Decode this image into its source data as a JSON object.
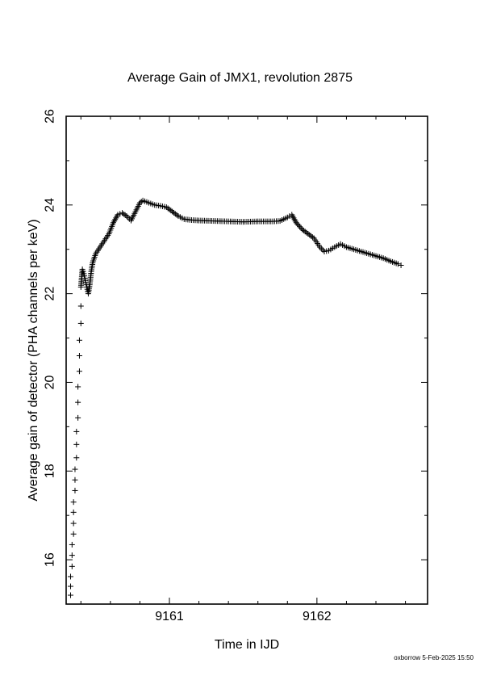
{
  "chart_data": {
    "type": "scatter",
    "title": "Average Gain of JMX1, revolution 2875",
    "xlabel": "Time in IJD",
    "ylabel": "Average gain of detector (PHA channels per keV)",
    "xlim": [
      9160.3,
      9162.75
    ],
    "ylim": [
      15,
      26
    ],
    "xticks": [
      9161,
      9162
    ],
    "yticks": [
      16,
      18,
      20,
      22,
      24,
      26
    ],
    "grid": false,
    "marker": "+",
    "series": [
      {
        "points": [
          [
            9160.33,
            15.2
          ],
          [
            9160.33,
            15.4
          ],
          [
            9160.33,
            15.62
          ],
          [
            9160.34,
            15.85
          ],
          [
            9160.34,
            16.1
          ],
          [
            9160.34,
            16.34
          ],
          [
            9160.35,
            16.58
          ],
          [
            9160.35,
            16.82
          ],
          [
            9160.35,
            17.07
          ],
          [
            9160.35,
            17.3
          ],
          [
            9160.36,
            17.56
          ],
          [
            9160.36,
            17.8
          ],
          [
            9160.36,
            18.04
          ],
          [
            9160.37,
            18.3
          ],
          [
            9160.37,
            18.6
          ],
          [
            9160.37,
            18.89
          ],
          [
            9160.38,
            19.2
          ],
          [
            9160.38,
            19.55
          ],
          [
            9160.38,
            19.9
          ],
          [
            9160.39,
            20.25
          ],
          [
            9160.39,
            20.6
          ],
          [
            9160.39,
            20.95
          ],
          [
            9160.4,
            21.33
          ],
          [
            9160.4,
            21.72
          ],
          [
            9160.4,
            22.15
          ],
          [
            9160.41,
            22.55
          ],
          [
            9160.42,
            22.45
          ],
          [
            9160.43,
            22.3
          ],
          [
            9160.44,
            22.15
          ],
          [
            9160.45,
            22.0
          ],
          [
            9160.46,
            22.2
          ],
          [
            9160.47,
            22.5
          ],
          [
            9160.48,
            22.7
          ],
          [
            9160.5,
            22.9
          ],
          [
            9160.53,
            23.05
          ],
          [
            9160.56,
            23.2
          ],
          [
            9160.59,
            23.35
          ],
          [
            9160.62,
            23.6
          ],
          [
            9160.65,
            23.78
          ],
          [
            9160.68,
            23.82
          ],
          [
            9160.71,
            23.75
          ],
          [
            9160.74,
            23.65
          ],
          [
            9160.77,
            23.85
          ],
          [
            9160.8,
            24.05
          ],
          [
            9160.82,
            24.1
          ],
          [
            9160.86,
            24.05
          ],
          [
            9160.9,
            24.0
          ],
          [
            9160.94,
            23.98
          ],
          [
            9160.98,
            23.95
          ],
          [
            9161.02,
            23.85
          ],
          [
            9161.06,
            23.75
          ],
          [
            9161.1,
            23.68
          ],
          [
            9161.15,
            23.66
          ],
          [
            9161.2,
            23.65
          ],
          [
            9161.3,
            23.64
          ],
          [
            9161.4,
            23.63
          ],
          [
            9161.5,
            23.62
          ],
          [
            9161.6,
            23.63
          ],
          [
            9161.7,
            23.63
          ],
          [
            9161.75,
            23.64
          ],
          [
            9161.8,
            23.72
          ],
          [
            9161.83,
            23.78
          ],
          [
            9161.86,
            23.6
          ],
          [
            9161.9,
            23.45
          ],
          [
            9161.94,
            23.35
          ],
          [
            9161.98,
            23.25
          ],
          [
            9162.02,
            23.05
          ],
          [
            9162.05,
            22.95
          ],
          [
            9162.08,
            22.97
          ],
          [
            9162.12,
            23.05
          ],
          [
            9162.16,
            23.12
          ],
          [
            9162.2,
            23.05
          ],
          [
            9162.25,
            23.0
          ],
          [
            9162.3,
            22.95
          ],
          [
            9162.35,
            22.9
          ],
          [
            9162.4,
            22.85
          ],
          [
            9162.45,
            22.8
          ],
          [
            9162.5,
            22.73
          ],
          [
            9162.55,
            22.67
          ],
          [
            9162.57,
            22.64
          ]
        ]
      }
    ]
  },
  "footer": {
    "stamp": "oxborrow  5-Feb-2025 15:50"
  }
}
